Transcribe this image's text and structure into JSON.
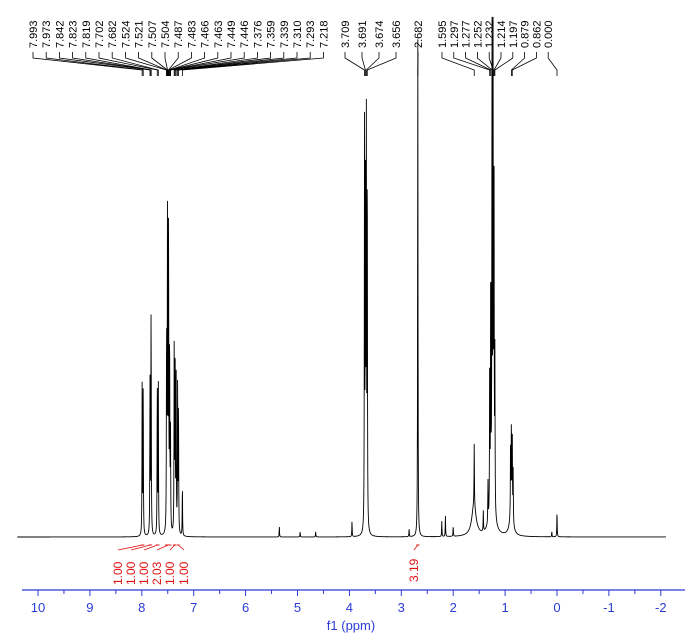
{
  "chart_data": {
    "type": "line",
    "xlabel": "f1 (ppm)",
    "xlim": [
      10.4,
      -2.1
    ],
    "x_reversed": true,
    "x_ticks": [
      "10",
      "9",
      "8",
      "7",
      "6",
      "5",
      "4",
      "3",
      "2",
      "1",
      "0",
      "-1",
      "-2"
    ],
    "grid": false,
    "colors": {
      "spectrum": "#000000",
      "integral": "#e01010",
      "axis": "#2a3bd6"
    },
    "peak_labels": [
      {
        "group": [
          "7.993",
          "7.973",
          "7.842",
          "7.823",
          "7.819",
          "7.702",
          "7.682",
          "7.524",
          "7.521",
          "7.507",
          "7.504",
          "7.487",
          "7.483",
          "7.466",
          "7.463",
          "7.449",
          "7.446",
          "7.376",
          "7.359",
          "7.339",
          "7.310",
          "7.293",
          "7.218"
        ]
      },
      {
        "group": [
          "3.709",
          "3.691",
          "3.674",
          "3.656"
        ]
      },
      {
        "group": [
          "2.682"
        ]
      },
      {
        "group": [
          "1.595",
          "1.297",
          "1.277",
          "1.252",
          "1.232",
          "1.214",
          "1.197",
          "0.879",
          "0.862",
          "0.000"
        ]
      }
    ],
    "integrals": [
      {
        "label": "1.00",
        "from": 8.02,
        "to": 7.95
      },
      {
        "label": "1.00",
        "from": 7.87,
        "to": 7.8
      },
      {
        "label": "1.00",
        "from": 7.73,
        "to": 7.66
      },
      {
        "label": "2.03",
        "from": 7.55,
        "to": 7.43
      },
      {
        "label": "1.00",
        "from": 7.4,
        "to": 7.33
      },
      {
        "label": "1.00",
        "from": 7.32,
        "to": 7.27
      },
      {
        "label": "3.19",
        "from": 2.71,
        "to": 2.65
      }
    ],
    "peaks": [
      [
        7.993,
        30
      ],
      [
        7.973,
        30
      ],
      [
        7.842,
        30
      ],
      [
        7.823,
        31
      ],
      [
        7.819,
        20
      ],
      [
        7.702,
        30
      ],
      [
        7.682,
        30
      ],
      [
        7.524,
        20
      ],
      [
        7.521,
        22
      ],
      [
        7.507,
        30
      ],
      [
        7.504,
        38
      ],
      [
        7.487,
        40
      ],
      [
        7.483,
        30
      ],
      [
        7.466,
        22
      ],
      [
        7.463,
        18
      ],
      [
        7.449,
        12
      ],
      [
        7.446,
        10
      ],
      [
        7.376,
        36
      ],
      [
        7.359,
        38
      ],
      [
        7.339,
        34
      ],
      [
        7.31,
        28
      ],
      [
        7.293,
        26
      ],
      [
        7.218,
        10
      ],
      [
        5.35,
        2
      ],
      [
        4.95,
        1
      ],
      [
        4.65,
        1
      ],
      [
        3.95,
        3
      ],
      [
        3.709,
        78
      ],
      [
        3.691,
        79
      ],
      [
        3.674,
        78
      ],
      [
        3.656,
        74
      ],
      [
        2.85,
        1.5
      ],
      [
        2.682,
        100
      ],
      [
        2.22,
        3
      ],
      [
        2.15,
        4
      ],
      [
        2.0,
        2
      ],
      [
        1.595,
        12
      ],
      [
        1.42,
        4
      ],
      [
        1.33,
        8
      ],
      [
        1.297,
        30
      ],
      [
        1.277,
        50
      ],
      [
        1.252,
        94
      ],
      [
        1.232,
        95
      ],
      [
        1.214,
        70
      ],
      [
        1.197,
        30
      ],
      [
        0.895,
        14
      ],
      [
        0.879,
        18
      ],
      [
        0.862,
        16
      ],
      [
        0.845,
        10
      ],
      [
        0.1,
        1
      ],
      [
        0.0,
        5
      ]
    ]
  }
}
